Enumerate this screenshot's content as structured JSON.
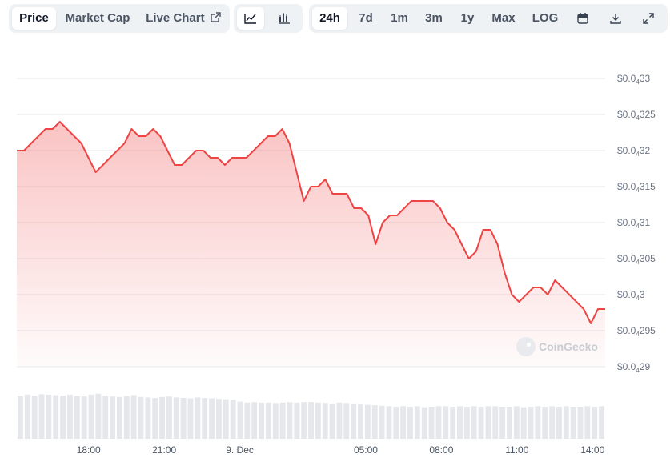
{
  "tabs": {
    "price": "Price",
    "market_cap": "Market Cap",
    "live_chart": "Live Chart"
  },
  "ranges": [
    "24h",
    "7d",
    "1m",
    "3m",
    "1y",
    "Max",
    "LOG"
  ],
  "active_range": "24h",
  "icons": {
    "live_chart": "external-link-icon",
    "line_chart": "line-chart-icon",
    "candle_chart": "candlestick-chart-icon",
    "calendar": "calendar-icon",
    "download": "download-icon",
    "expand": "expand-icon"
  },
  "watermark": "CoinGecko",
  "colors": {
    "line": "#ef4444",
    "volume": "#e5e7eb"
  },
  "chart_data": {
    "type": "area",
    "title": "",
    "xlabel": "",
    "ylabel": "",
    "grid": true,
    "y_tick_labels": [
      {
        "prefix": "$0.0",
        "sub": "4",
        "digits": "33",
        "value": 4.33e-05
      },
      {
        "prefix": "$0.0",
        "sub": "4",
        "digits": "325",
        "value": 4.325e-05
      },
      {
        "prefix": "$0.0",
        "sub": "4",
        "digits": "32",
        "value": 4.32e-05
      },
      {
        "prefix": "$0.0",
        "sub": "4",
        "digits": "315",
        "value": 4.315e-05
      },
      {
        "prefix": "$0.0",
        "sub": "4",
        "digits": "31",
        "value": 4.31e-05
      },
      {
        "prefix": "$0.0",
        "sub": "4",
        "digits": "305",
        "value": 4.305e-05
      },
      {
        "prefix": "$0.0",
        "sub": "4",
        "digits": "3",
        "value": 4.3e-05
      },
      {
        "prefix": "$0.0",
        "sub": "4",
        "digits": "295",
        "value": 4.295e-05
      },
      {
        "prefix": "$0.0",
        "sub": "4",
        "digits": "29",
        "value": 4.29e-05
      }
    ],
    "ylim": [
      4.29e-05,
      4.33e-05
    ],
    "x_ticks": [
      {
        "label": "18:00",
        "t": 18
      },
      {
        "label": "21:00",
        "t": 21
      },
      {
        "label": "9. Dec",
        "t": 24
      },
      {
        "label": "05:00",
        "t": 29
      },
      {
        "label": "08:00",
        "t": 32
      },
      {
        "label": "11:00",
        "t": 35
      },
      {
        "label": "14:00",
        "t": 38
      }
    ],
    "x_range_hours": [
      15.15,
      38.5
    ],
    "series": [
      {
        "price": [
          4.32e-05,
          4.32e-05,
          4.321e-05,
          4.322e-05,
          4.323e-05,
          4.323e-05,
          4.324e-05,
          4.323e-05,
          4.322e-05,
          4.321e-05,
          4.319e-05,
          4.317e-05,
          4.318e-05,
          4.319e-05,
          4.32e-05,
          4.321e-05,
          4.323e-05,
          4.322e-05,
          4.322e-05,
          4.323e-05,
          4.322e-05,
          4.32e-05,
          4.318e-05,
          4.318e-05,
          4.319e-05,
          4.32e-05,
          4.32e-05,
          4.319e-05,
          4.319e-05,
          4.318e-05,
          4.319e-05,
          4.319e-05,
          4.319e-05,
          4.32e-05,
          4.321e-05,
          4.322e-05,
          4.322e-05,
          4.323e-05,
          4.321e-05,
          4.317e-05,
          4.313e-05,
          4.315e-05,
          4.315e-05,
          4.316e-05,
          4.314e-05,
          4.314e-05,
          4.314e-05,
          4.312e-05,
          4.312e-05,
          4.311e-05,
          4.307e-05,
          4.31e-05,
          4.311e-05,
          4.311e-05,
          4.312e-05,
          4.313e-05,
          4.313e-05,
          4.313e-05,
          4.313e-05,
          4.312e-05,
          4.31e-05,
          4.309e-05,
          4.307e-05,
          4.305e-05,
          4.306e-05,
          4.309e-05,
          4.309e-05,
          4.307e-05,
          4.303e-05,
          4.3e-05,
          4.299e-05,
          4.3e-05,
          4.301e-05,
          4.301e-05,
          4.3e-05,
          4.302e-05,
          4.301e-05,
          4.3e-05,
          4.299e-05,
          4.298e-05,
          4.296e-05,
          4.298e-05,
          4.298e-05
        ]
      }
    ],
    "volume_relative": [
      0.92,
      0.95,
      0.93,
      0.96,
      0.95,
      0.94,
      0.93,
      0.95,
      0.92,
      0.91,
      0.95,
      0.97,
      0.93,
      0.91,
      0.9,
      0.92,
      0.94,
      0.9,
      0.89,
      0.88,
      0.9,
      0.91,
      0.89,
      0.88,
      0.87,
      0.89,
      0.88,
      0.87,
      0.86,
      0.85,
      0.84,
      0.8,
      0.78,
      0.79,
      0.78,
      0.78,
      0.77,
      0.78,
      0.79,
      0.78,
      0.79,
      0.79,
      0.78,
      0.77,
      0.76,
      0.78,
      0.77,
      0.76,
      0.75,
      0.73,
      0.72,
      0.71,
      0.7,
      0.69,
      0.7,
      0.69,
      0.7,
      0.68,
      0.69,
      0.7,
      0.7,
      0.69,
      0.7,
      0.69,
      0.7,
      0.69,
      0.7,
      0.7,
      0.69,
      0.69,
      0.7,
      0.68,
      0.69,
      0.7,
      0.69,
      0.7,
      0.69,
      0.7,
      0.69,
      0.69,
      0.7,
      0.69,
      0.7
    ]
  }
}
